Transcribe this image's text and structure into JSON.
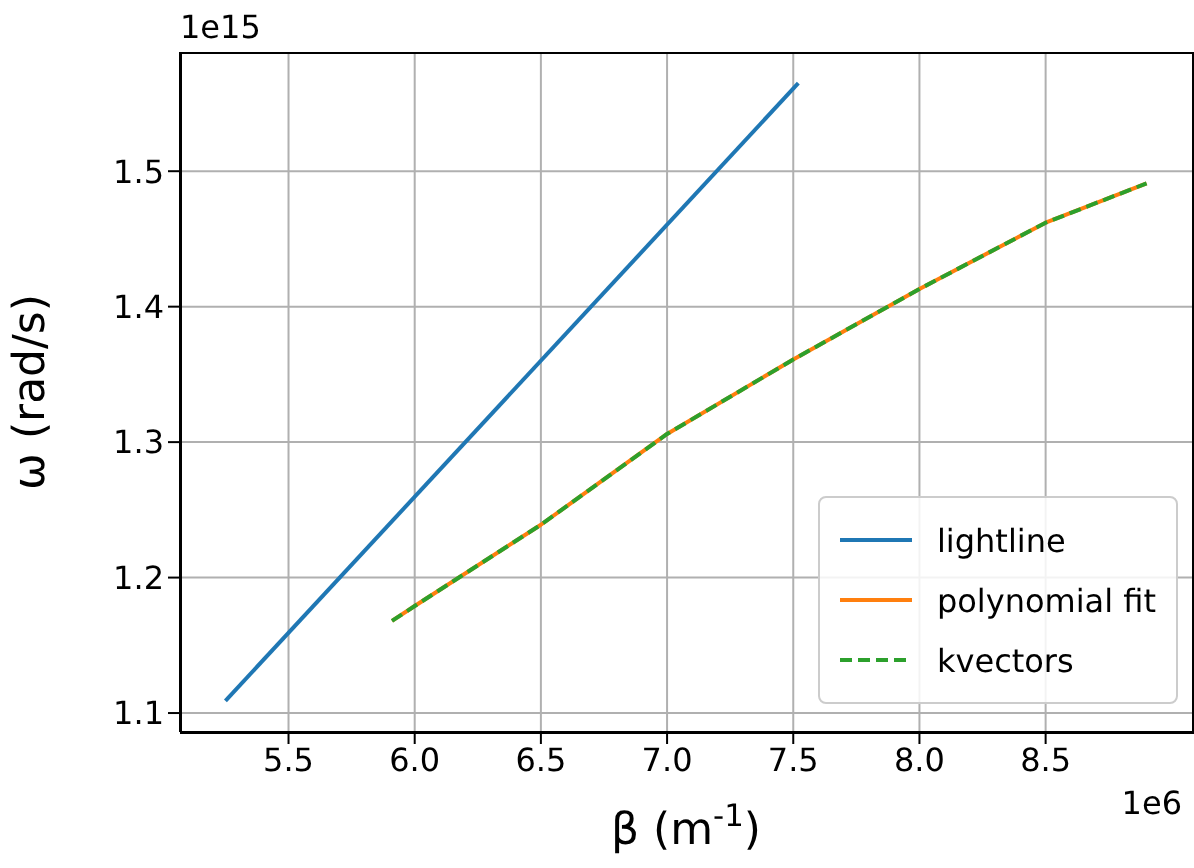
{
  "chart_data": {
    "type": "line",
    "xlabel": "β (m$^{-1}$)",
    "ylabel": "ω (rad/s)",
    "series": [
      {
        "name": "lightline",
        "color": "#1f77b4",
        "x": [
          5.25,
          7.52
        ],
        "values": [
          1.109,
          1.565
        ]
      },
      {
        "name": "polynomial fit",
        "color": "#ff7f0e",
        "x": [
          5.91,
          6.0,
          6.5,
          7.0,
          7.5,
          8.0,
          8.5,
          8.9
        ],
        "values": [
          1.168,
          1.179,
          1.239,
          1.306,
          1.361,
          1.413,
          1.462,
          1.491
        ]
      },
      {
        "name": "kvectors",
        "color": "#2ca02c",
        "line_style": "dashed",
        "x": [
          5.91,
          6.0,
          6.5,
          7.0,
          7.5,
          8.0,
          8.5,
          8.9
        ],
        "values": [
          1.168,
          1.179,
          1.239,
          1.306,
          1.361,
          1.413,
          1.462,
          1.491
        ]
      }
    ],
    "xlim": [
      5.07,
      9.08
    ],
    "xticks": [
      5.5,
      {
        "value": 6,
        "label": "6.0"
      },
      6.5,
      {
        "value": 7,
        "label": "7.0"
      },
      7.5,
      {
        "value": 8,
        "label": "8.0"
      },
      8.5
    ],
    "ylim": [
      1.086,
      1.588
    ],
    "yticks": [
      1.1,
      1.2,
      1.3,
      1.4,
      1.5
    ],
    "grid": true,
    "legend": "bottom right",
    "marker": "none",
    "line_style": "solid",
    "annotations": [
      "1e15",
      "1e6"
    ]
  }
}
